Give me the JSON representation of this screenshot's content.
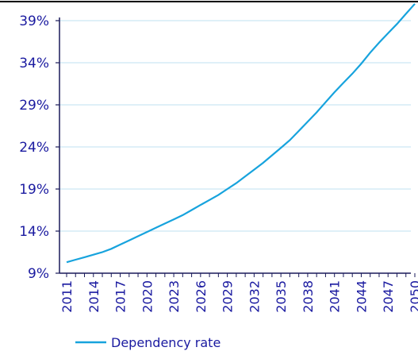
{
  "colors": {
    "line": "#17a3dd",
    "grid": "#bfe0f2",
    "axis": "#1a1a5a",
    "text": "#1a1aa0",
    "topRule": "#000000"
  },
  "chart_data": {
    "type": "line",
    "title": "",
    "xlabel": "",
    "ylabel": "",
    "ylim": [
      9,
      39
    ],
    "y_ticks": [
      "9%",
      "14%",
      "19%",
      "24%",
      "29%",
      "34%",
      "39%"
    ],
    "y_tick_values": [
      9,
      14,
      19,
      24,
      29,
      34,
      39
    ],
    "x_ticks": [
      "2011",
      "2014",
      "2017",
      "2020",
      "2023",
      "2026",
      "2029",
      "2032",
      "2035",
      "2038",
      "2041",
      "2044",
      "2047",
      "2050"
    ],
    "x_range": [
      2011,
      2050
    ],
    "grid": true,
    "legend_position": "bottom-left",
    "series": [
      {
        "name": "Dependency rate",
        "x": [
          2011,
          2012,
          2013,
          2014,
          2015,
          2016,
          2017,
          2018,
          2019,
          2020,
          2021,
          2022,
          2023,
          2024,
          2025,
          2026,
          2027,
          2028,
          2029,
          2030,
          2031,
          2032,
          2033,
          2034,
          2035,
          2036,
          2037,
          2038,
          2039,
          2040,
          2041,
          2042,
          2043,
          2044,
          2045,
          2046,
          2047,
          2048,
          2049,
          2050
        ],
        "y": [
          10.3,
          10.6,
          10.9,
          11.2,
          11.5,
          11.9,
          12.4,
          12.9,
          13.4,
          13.9,
          14.4,
          14.9,
          15.4,
          15.9,
          16.5,
          17.1,
          17.7,
          18.3,
          19.0,
          19.7,
          20.5,
          21.3,
          22.1,
          23.0,
          23.9,
          24.8,
          25.9,
          27.0,
          28.1,
          29.3,
          30.5,
          31.6,
          32.7,
          33.9,
          35.2,
          36.4,
          37.5,
          38.6,
          39.8,
          41.0
        ]
      }
    ]
  }
}
